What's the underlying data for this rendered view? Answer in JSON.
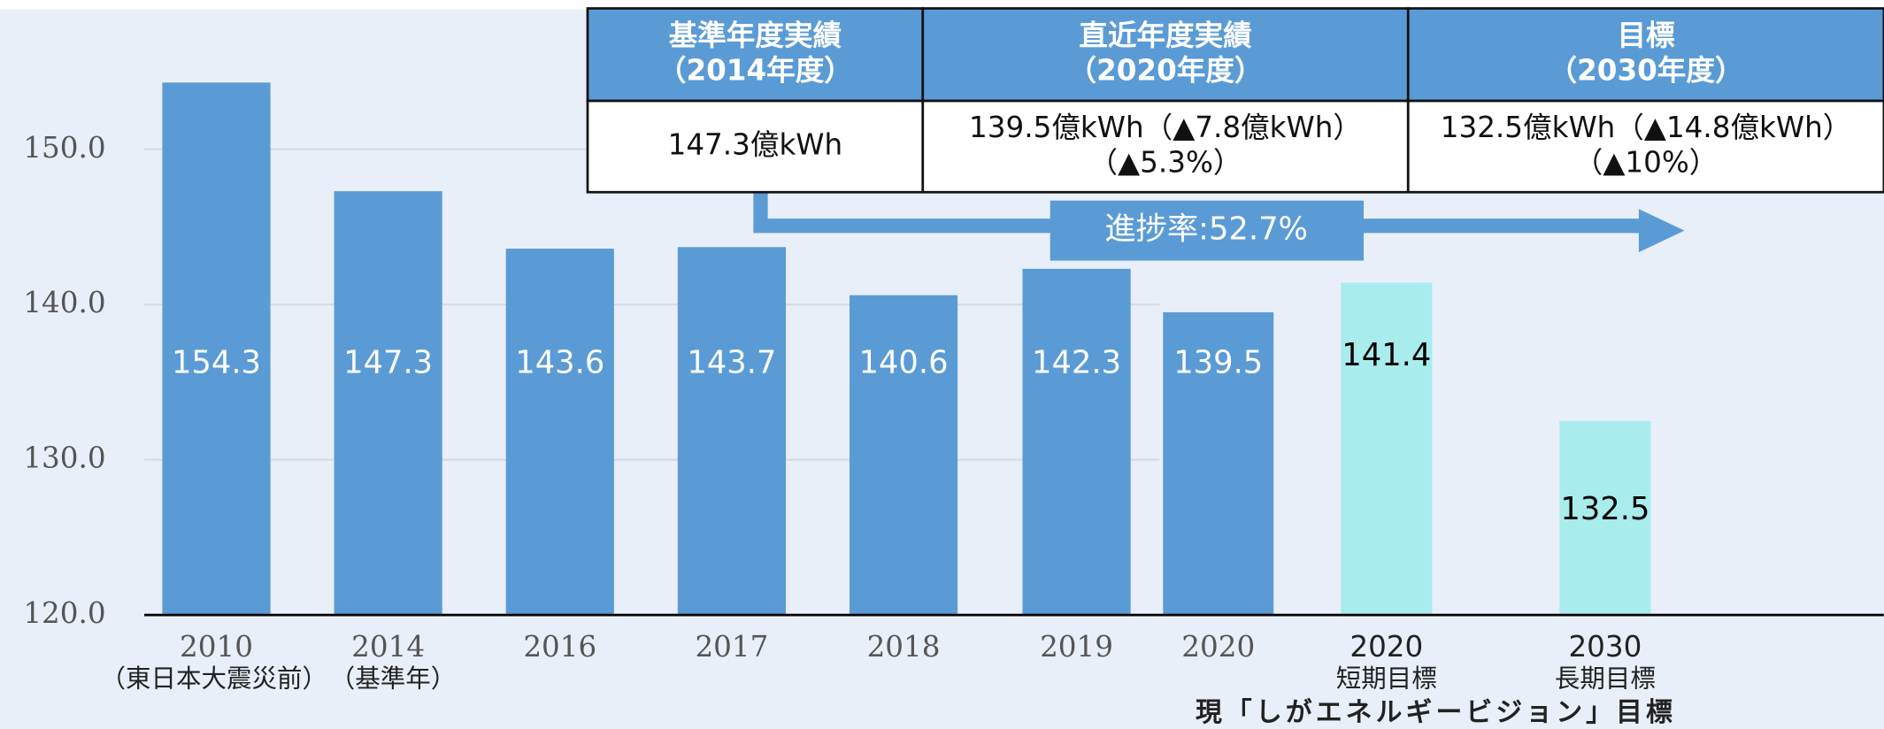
{
  "chart_data": {
    "type": "bar",
    "categories": [
      "2010",
      "2014",
      "2016",
      "2017",
      "2018",
      "2019",
      "2020",
      "2020",
      "2030"
    ],
    "category_notes": [
      "（東日本大震災前）",
      "（基準年）",
      null,
      null,
      null,
      null,
      null,
      "短期目標",
      "長期目標"
    ],
    "values": [
      154.3,
      147.3,
      143.6,
      143.7,
      140.6,
      142.3,
      139.5,
      141.4,
      132.5
    ],
    "colors": [
      "#5b9bd5",
      "#5b9bd5",
      "#5b9bd5",
      "#5b9bd5",
      "#5b9bd5",
      "#5b9bd5",
      "#5b9bd5",
      "#a8ecee",
      "#a8ecee"
    ],
    "value_label_colors": [
      "#ffffff",
      "#ffffff",
      "#ffffff",
      "#ffffff",
      "#ffffff",
      "#ffffff",
      "#ffffff",
      "#000000",
      "#000000"
    ],
    "ylim": [
      120,
      159
    ],
    "yticks": [
      {
        "value": 120,
        "label": "120.0"
      },
      {
        "value": 130,
        "label": "130.0"
      },
      {
        "value": 140,
        "label": "140.0"
      },
      {
        "value": 150,
        "label": "150.0"
      }
    ],
    "grid": true,
    "footnote": "現「しがエネルギービジョン」目標",
    "annotation": "進捗率:52.7%"
  },
  "table": {
    "headers": [
      [
        "基準年度実績",
        "（2014年度）"
      ],
      [
        "直近年度実績",
        "（2020年度）"
      ],
      [
        "目標",
        "（2030年度）"
      ]
    ],
    "rows": [
      [
        [
          "147.3億kWh"
        ],
        [
          "139.5億kWh（▲7.8億kWh）",
          "（▲5.3%）"
        ],
        [
          "132.5億kWh（▲14.8億kWh）",
          "（▲10%）"
        ]
      ]
    ]
  }
}
